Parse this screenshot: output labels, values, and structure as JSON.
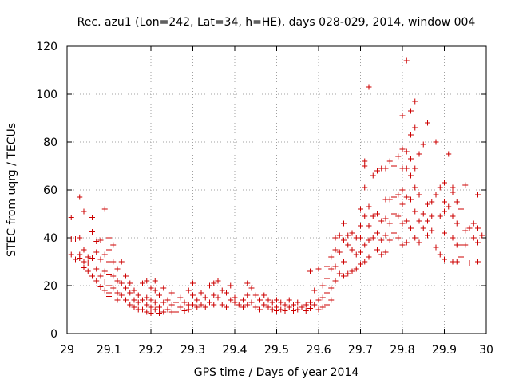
{
  "chart_data": {
    "type": "scatter",
    "title": "Rec. azu1 (Lon=242, Lat=34, h=HE), days 028-029, 2014, window 004",
    "xlabel": "GPS time / Days of year 2014",
    "ylabel": "STEC from uqrg / TECUs",
    "xlim": [
      29,
      30
    ],
    "ylim": [
      0,
      120
    ],
    "xticks": [
      "29",
      "29.1",
      "29.2",
      "29.3",
      "29.4",
      "29.5",
      "29.6",
      "29.7",
      "29.8",
      "29.9",
      "30"
    ],
    "yticks": [
      "0",
      "20",
      "40",
      "60",
      "80",
      "100",
      "120"
    ],
    "grid": true,
    "legend": false,
    "marker": "plus",
    "color": "#cc0000",
    "series": [
      {
        "points": [
          [
            29.01,
            48.5
          ],
          [
            29.01,
            39.5
          ],
          [
            29.02,
            39.5
          ],
          [
            29.01,
            33
          ],
          [
            29.02,
            31
          ],
          [
            29.03,
            57
          ],
          [
            29.03,
            40
          ],
          [
            29.03,
            33
          ],
          [
            29.03,
            31.5
          ],
          [
            29.04,
            51
          ],
          [
            29.04,
            35
          ],
          [
            29.04,
            30
          ],
          [
            29.04,
            27.5
          ],
          [
            29.05,
            32
          ],
          [
            29.05,
            29.5
          ],
          [
            29.05,
            26
          ],
          [
            29.06,
            48.5
          ],
          [
            29.06,
            42.5
          ],
          [
            29.06,
            31.5
          ],
          [
            29.06,
            24
          ],
          [
            29.07,
            38.5
          ],
          [
            29.07,
            34
          ],
          [
            29.07,
            27
          ],
          [
            29.07,
            22
          ],
          [
            29.08,
            39
          ],
          [
            29.08,
            31
          ],
          [
            29.08,
            24
          ],
          [
            29.08,
            19.5
          ],
          [
            29.09,
            52
          ],
          [
            29.09,
            33
          ],
          [
            29.09,
            26
          ],
          [
            29.09,
            21.5
          ],
          [
            29.09,
            18
          ],
          [
            29.1,
            40
          ],
          [
            29.1,
            35
          ],
          [
            29.1,
            30
          ],
          [
            29.1,
            24.5
          ],
          [
            29.1,
            20
          ],
          [
            29.1,
            17
          ],
          [
            29.1,
            15.5
          ],
          [
            29.11,
            37
          ],
          [
            29.11,
            30
          ],
          [
            29.11,
            24
          ],
          [
            29.11,
            19
          ],
          [
            29.12,
            27
          ],
          [
            29.12,
            22
          ],
          [
            29.12,
            17
          ],
          [
            29.12,
            14
          ],
          [
            29.13,
            30
          ],
          [
            29.13,
            21
          ],
          [
            29.13,
            16
          ],
          [
            29.14,
            24
          ],
          [
            29.14,
            19
          ],
          [
            29.14,
            14
          ],
          [
            29.15,
            21
          ],
          [
            29.15,
            17
          ],
          [
            29.15,
            12
          ],
          [
            29.16,
            18
          ],
          [
            29.16,
            14
          ],
          [
            29.16,
            11
          ],
          [
            29.17,
            16
          ],
          [
            29.17,
            13
          ],
          [
            29.17,
            10
          ],
          [
            29.18,
            21
          ],
          [
            29.18,
            14
          ],
          [
            29.18,
            10
          ],
          [
            29.19,
            22
          ],
          [
            29.19,
            15
          ],
          [
            29.19,
            12
          ],
          [
            29.19,
            9
          ],
          [
            29.2,
            19
          ],
          [
            29.2,
            14
          ],
          [
            29.2,
            11
          ],
          [
            29.2,
            8.5
          ],
          [
            29.21,
            22
          ],
          [
            29.21,
            18
          ],
          [
            29.21,
            13
          ],
          [
            29.21,
            10
          ],
          [
            29.22,
            16
          ],
          [
            29.22,
            11
          ],
          [
            29.22,
            8.5
          ],
          [
            29.23,
            19
          ],
          [
            29.23,
            13
          ],
          [
            29.23,
            9
          ],
          [
            29.24,
            14
          ],
          [
            29.24,
            10
          ],
          [
            29.25,
            17
          ],
          [
            29.25,
            12
          ],
          [
            29.25,
            9
          ],
          [
            29.26,
            13
          ],
          [
            29.26,
            9
          ],
          [
            29.27,
            15
          ],
          [
            29.27,
            11
          ],
          [
            29.28,
            13
          ],
          [
            29.28,
            9.5
          ],
          [
            29.29,
            18
          ],
          [
            29.29,
            12
          ],
          [
            29.29,
            10
          ],
          [
            29.3,
            21
          ],
          [
            29.3,
            16
          ],
          [
            29.3,
            12
          ],
          [
            29.31,
            14
          ],
          [
            29.31,
            11
          ],
          [
            29.32,
            17
          ],
          [
            29.32,
            12
          ],
          [
            29.33,
            15
          ],
          [
            29.33,
            11
          ],
          [
            29.34,
            20
          ],
          [
            29.34,
            13
          ],
          [
            29.35,
            21
          ],
          [
            29.35,
            16
          ],
          [
            29.35,
            12
          ],
          [
            29.36,
            22
          ],
          [
            29.36,
            15
          ],
          [
            29.37,
            18
          ],
          [
            29.37,
            12
          ],
          [
            29.38,
            17
          ],
          [
            29.38,
            11
          ],
          [
            29.39,
            20
          ],
          [
            29.39,
            14
          ],
          [
            29.4,
            13
          ],
          [
            29.4,
            15
          ],
          [
            29.41,
            12
          ],
          [
            29.42,
            14
          ],
          [
            29.42,
            11
          ],
          [
            29.43,
            21
          ],
          [
            29.43,
            16
          ],
          [
            29.43,
            12
          ],
          [
            29.44,
            19
          ],
          [
            29.44,
            13
          ],
          [
            29.45,
            16
          ],
          [
            29.45,
            11
          ],
          [
            29.46,
            14
          ],
          [
            29.46,
            10
          ],
          [
            29.47,
            16
          ],
          [
            29.47,
            12
          ],
          [
            29.48,
            14
          ],
          [
            29.48,
            11
          ],
          [
            29.49,
            13
          ],
          [
            29.49,
            10
          ],
          [
            29.5,
            14
          ],
          [
            29.5,
            11
          ],
          [
            29.5,
            9.5
          ],
          [
            29.51,
            13
          ],
          [
            29.51,
            10
          ],
          [
            29.52,
            12
          ],
          [
            29.52,
            9.5
          ],
          [
            29.53,
            14
          ],
          [
            29.53,
            11
          ],
          [
            29.54,
            12
          ],
          [
            29.54,
            9.5
          ],
          [
            29.55,
            13
          ],
          [
            29.55,
            10
          ],
          [
            29.56,
            11
          ],
          [
            29.57,
            12
          ],
          [
            29.57,
            9.5
          ],
          [
            29.58,
            26
          ],
          [
            29.58,
            13
          ],
          [
            29.58,
            10.5
          ],
          [
            29.59,
            18
          ],
          [
            29.59,
            12
          ],
          [
            29.6,
            27
          ],
          [
            29.6,
            14
          ],
          [
            29.6,
            10
          ],
          [
            29.61,
            20
          ],
          [
            29.61,
            15
          ],
          [
            29.61,
            11
          ],
          [
            29.62,
            28
          ],
          [
            29.62,
            23
          ],
          [
            29.62,
            17
          ],
          [
            29.62,
            12
          ],
          [
            29.63,
            32
          ],
          [
            29.63,
            27
          ],
          [
            29.63,
            19
          ],
          [
            29.63,
            14
          ],
          [
            29.64,
            40
          ],
          [
            29.64,
            35
          ],
          [
            29.64,
            28
          ],
          [
            29.64,
            22
          ],
          [
            29.65,
            41
          ],
          [
            29.65,
            34
          ],
          [
            29.65,
            25
          ],
          [
            29.66,
            46
          ],
          [
            29.66,
            39
          ],
          [
            29.66,
            30
          ],
          [
            29.66,
            24
          ],
          [
            29.67,
            41
          ],
          [
            29.67,
            37
          ],
          [
            29.67,
            25
          ],
          [
            29.68,
            42
          ],
          [
            29.68,
            35
          ],
          [
            29.68,
            26
          ],
          [
            29.69,
            40
          ],
          [
            29.69,
            33
          ],
          [
            29.69,
            27
          ],
          [
            29.7,
            52
          ],
          [
            29.7,
            45
          ],
          [
            29.7,
            40
          ],
          [
            29.7,
            34
          ],
          [
            29.7,
            29
          ],
          [
            29.71,
            72
          ],
          [
            29.71,
            70
          ],
          [
            29.71,
            61
          ],
          [
            29.71,
            49
          ],
          [
            29.71,
            37
          ],
          [
            29.71,
            30
          ],
          [
            29.72,
            103
          ],
          [
            29.72,
            53
          ],
          [
            29.72,
            45
          ],
          [
            29.72,
            39
          ],
          [
            29.72,
            32
          ],
          [
            29.73,
            66
          ],
          [
            29.73,
            49
          ],
          [
            29.73,
            40
          ],
          [
            29.74,
            68
          ],
          [
            29.74,
            50
          ],
          [
            29.74,
            42
          ],
          [
            29.74,
            35
          ],
          [
            29.75,
            69
          ],
          [
            29.75,
            47
          ],
          [
            29.75,
            39
          ],
          [
            29.75,
            33
          ],
          [
            29.76,
            69
          ],
          [
            29.76,
            56
          ],
          [
            29.76,
            48
          ],
          [
            29.76,
            41
          ],
          [
            29.76,
            34
          ],
          [
            29.77,
            72
          ],
          [
            29.77,
            56
          ],
          [
            29.77,
            46
          ],
          [
            29.77,
            39
          ],
          [
            29.78,
            70
          ],
          [
            29.78,
            57
          ],
          [
            29.78,
            50
          ],
          [
            29.78,
            42
          ],
          [
            29.79,
            74
          ],
          [
            29.79,
            58
          ],
          [
            29.79,
            49
          ],
          [
            29.79,
            40
          ],
          [
            29.8,
            91
          ],
          [
            29.8,
            77
          ],
          [
            29.8,
            69
          ],
          [
            29.8,
            60
          ],
          [
            29.8,
            54
          ],
          [
            29.8,
            46
          ],
          [
            29.8,
            37
          ],
          [
            29.81,
            114
          ],
          [
            29.81,
            76
          ],
          [
            29.81,
            69
          ],
          [
            29.81,
            57
          ],
          [
            29.81,
            47
          ],
          [
            29.81,
            38
          ],
          [
            29.82,
            93
          ],
          [
            29.82,
            83
          ],
          [
            29.82,
            73
          ],
          [
            29.82,
            66
          ],
          [
            29.82,
            56
          ],
          [
            29.82,
            44
          ],
          [
            29.83,
            97
          ],
          [
            29.83,
            86
          ],
          [
            29.83,
            69
          ],
          [
            29.83,
            61
          ],
          [
            29.83,
            51
          ],
          [
            29.83,
            40
          ],
          [
            29.84,
            75
          ],
          [
            29.84,
            58
          ],
          [
            29.84,
            47
          ],
          [
            29.84,
            38
          ],
          [
            29.85,
            79
          ],
          [
            29.85,
            50
          ],
          [
            29.85,
            44
          ],
          [
            29.86,
            88
          ],
          [
            29.86,
            54
          ],
          [
            29.86,
            47
          ],
          [
            29.86,
            41
          ],
          [
            29.87,
            55
          ],
          [
            29.87,
            49
          ],
          [
            29.87,
            43
          ],
          [
            29.88,
            80
          ],
          [
            29.88,
            58
          ],
          [
            29.88,
            36
          ],
          [
            29.89,
            61
          ],
          [
            29.89,
            49
          ],
          [
            29.89,
            33
          ],
          [
            29.9,
            63
          ],
          [
            29.9,
            55
          ],
          [
            29.9,
            51
          ],
          [
            29.9,
            42
          ],
          [
            29.9,
            31
          ],
          [
            29.91,
            75
          ],
          [
            29.91,
            53
          ],
          [
            29.92,
            61
          ],
          [
            29.92,
            59
          ],
          [
            29.92,
            49
          ],
          [
            29.92,
            40
          ],
          [
            29.92,
            30
          ],
          [
            29.93,
            55
          ],
          [
            29.93,
            46
          ],
          [
            29.93,
            37
          ],
          [
            29.93,
            30
          ],
          [
            29.94,
            52
          ],
          [
            29.94,
            37
          ],
          [
            29.94,
            32
          ],
          [
            29.95,
            62
          ],
          [
            29.95,
            43
          ],
          [
            29.95,
            37
          ],
          [
            29.96,
            44
          ],
          [
            29.96,
            29.5
          ],
          [
            29.97,
            46
          ],
          [
            29.97,
            40
          ],
          [
            29.98,
            58
          ],
          [
            29.98,
            44
          ],
          [
            29.98,
            38
          ],
          [
            29.98,
            30
          ],
          [
            29.99,
            41
          ]
        ]
      }
    ]
  }
}
